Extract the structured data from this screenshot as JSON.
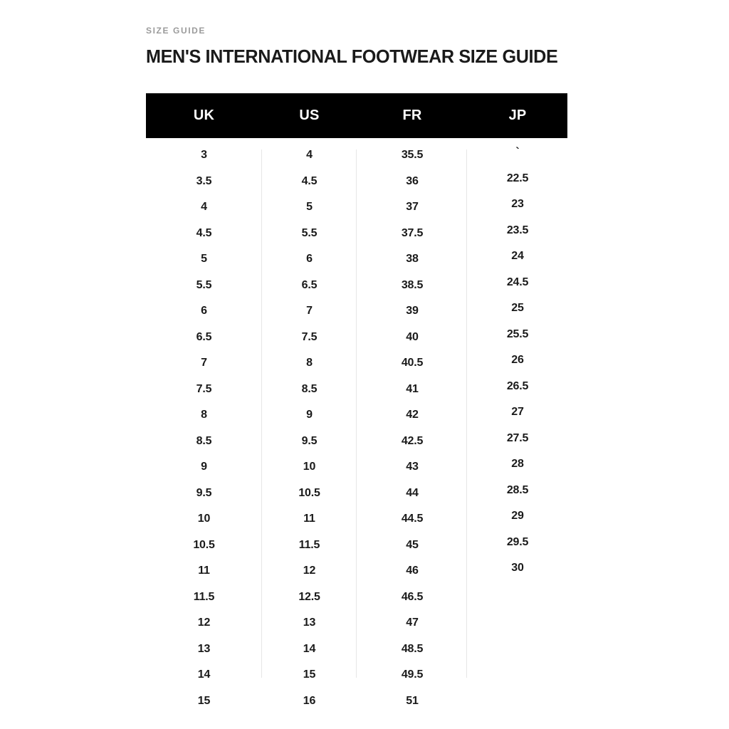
{
  "page": {
    "eyebrow": "SIZE GUIDE",
    "title": "MEN'S INTERNATIONAL FOOTWEAR SIZE GUIDE"
  },
  "table": {
    "columns": [
      "UK",
      "US",
      "FR",
      "JP"
    ],
    "rows": [
      [
        "3",
        "4",
        "35.5",
        "`"
      ],
      [
        "3.5",
        "4.5",
        "36",
        "22.5"
      ],
      [
        "4",
        "5",
        "37",
        "23"
      ],
      [
        "4.5",
        "5.5",
        "37.5",
        "23.5"
      ],
      [
        "5",
        "6",
        "38",
        "24"
      ],
      [
        "5.5",
        "6.5",
        "38.5",
        "24.5"
      ],
      [
        "6",
        "7",
        "39",
        "25"
      ],
      [
        "6.5",
        "7.5",
        "40",
        "25.5"
      ],
      [
        "7",
        "8",
        "40.5",
        "26"
      ],
      [
        "7.5",
        "8.5",
        "41",
        "26.5"
      ],
      [
        "8",
        "9",
        "42",
        "27"
      ],
      [
        "8.5",
        "9.5",
        "42.5",
        "27.5"
      ],
      [
        "9",
        "10",
        "43",
        "28"
      ],
      [
        "9.5",
        "10.5",
        "44",
        "28.5"
      ],
      [
        "10",
        "11",
        "44.5",
        "29"
      ],
      [
        "10.5",
        "11.5",
        "45",
        "29.5"
      ],
      [
        "11",
        "12",
        "46",
        "30"
      ],
      [
        "11.5",
        "12.5",
        "46.5",
        ""
      ],
      [
        "12",
        "13",
        "47",
        ""
      ],
      [
        "13",
        "14",
        "48.5",
        ""
      ],
      [
        "14",
        "15",
        "49.5",
        ""
      ],
      [
        "15",
        "16",
        "51",
        ""
      ]
    ]
  },
  "colors": {
    "background": "#ffffff",
    "header_bg": "#000000",
    "header_text": "#ffffff",
    "eyebrow_text": "#9b9b9b",
    "body_text": "#1a1a1a",
    "divider": "#e6e6e6"
  }
}
